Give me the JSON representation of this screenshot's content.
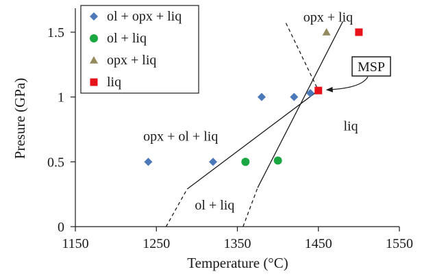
{
  "chart_data": {
    "type": "scatter",
    "title": "",
    "xlabel": "Temperature (°C)",
    "ylabel": "Presure (GPa)",
    "xlim": [
      1150,
      1550
    ],
    "ylim": [
      0,
      1.6
    ],
    "x_ticks": [
      1150,
      1250,
      1350,
      1450,
      1550
    ],
    "x_tick_labels": [
      "1150",
      "1250",
      "1350",
      "1450",
      "1550"
    ],
    "y_ticks": [
      0,
      0.5,
      1,
      1.5
    ],
    "y_tick_labels": [
      "0",
      "0.5",
      "1",
      "1.5"
    ],
    "grid": false,
    "legend_position": "top-left",
    "series": [
      {
        "name": "ol + opx + liq",
        "marker": "diamond",
        "color": "#4a78b9",
        "points": [
          {
            "x": 1240,
            "y": 0.5
          },
          {
            "x": 1320,
            "y": 0.5
          },
          {
            "x": 1380,
            "y": 1.0
          },
          {
            "x": 1420,
            "y": 1.0
          },
          {
            "x": 1440,
            "y": 1.03
          }
        ]
      },
      {
        "name": "ol + liq",
        "marker": "circle",
        "color": "#1aa640",
        "points": [
          {
            "x": 1360,
            "y": 0.5
          },
          {
            "x": 1400,
            "y": 0.51
          }
        ]
      },
      {
        "name": "opx + liq",
        "marker": "triangle",
        "color": "#958a5e",
        "points": [
          {
            "x": 1460,
            "y": 1.5
          }
        ]
      },
      {
        "name": "liq",
        "marker": "square",
        "color": "#e8131a",
        "points": [
          {
            "x": 1450,
            "y": 1.05
          },
          {
            "x": 1500,
            "y": 1.5
          }
        ]
      }
    ],
    "boundary_lines": [
      {
        "style": "solid",
        "points": [
          {
            "x": 1288,
            "y": 0.29
          },
          {
            "x": 1450,
            "y": 1.05
          }
        ]
      },
      {
        "style": "dashed",
        "points": [
          {
            "x": 1262,
            "y": 0.0
          },
          {
            "x": 1288,
            "y": 0.29
          }
        ]
      },
      {
        "style": "solid",
        "points": [
          {
            "x": 1375,
            "y": 0.3
          },
          {
            "x": 1480,
            "y": 1.58
          }
        ]
      },
      {
        "style": "dashed",
        "points": [
          {
            "x": 1357,
            "y": 0.0
          },
          {
            "x": 1375,
            "y": 0.3
          }
        ]
      },
      {
        "style": "dashed",
        "points": [
          {
            "x": 1410,
            "y": 1.57
          },
          {
            "x": 1450,
            "y": 1.05
          }
        ]
      }
    ],
    "region_labels": [
      {
        "text": "opx + liq",
        "x": 1462,
        "y": 1.62
      },
      {
        "text": "opx + ol + liq",
        "x": 1280,
        "y": 0.7
      },
      {
        "text": "liq",
        "x": 1490,
        "y": 0.78
      },
      {
        "text": "ol + liq",
        "x": 1322,
        "y": 0.17
      }
    ],
    "annotation": {
      "text": "MSP",
      "target": {
        "x": 1450,
        "y": 1.05
      }
    }
  }
}
